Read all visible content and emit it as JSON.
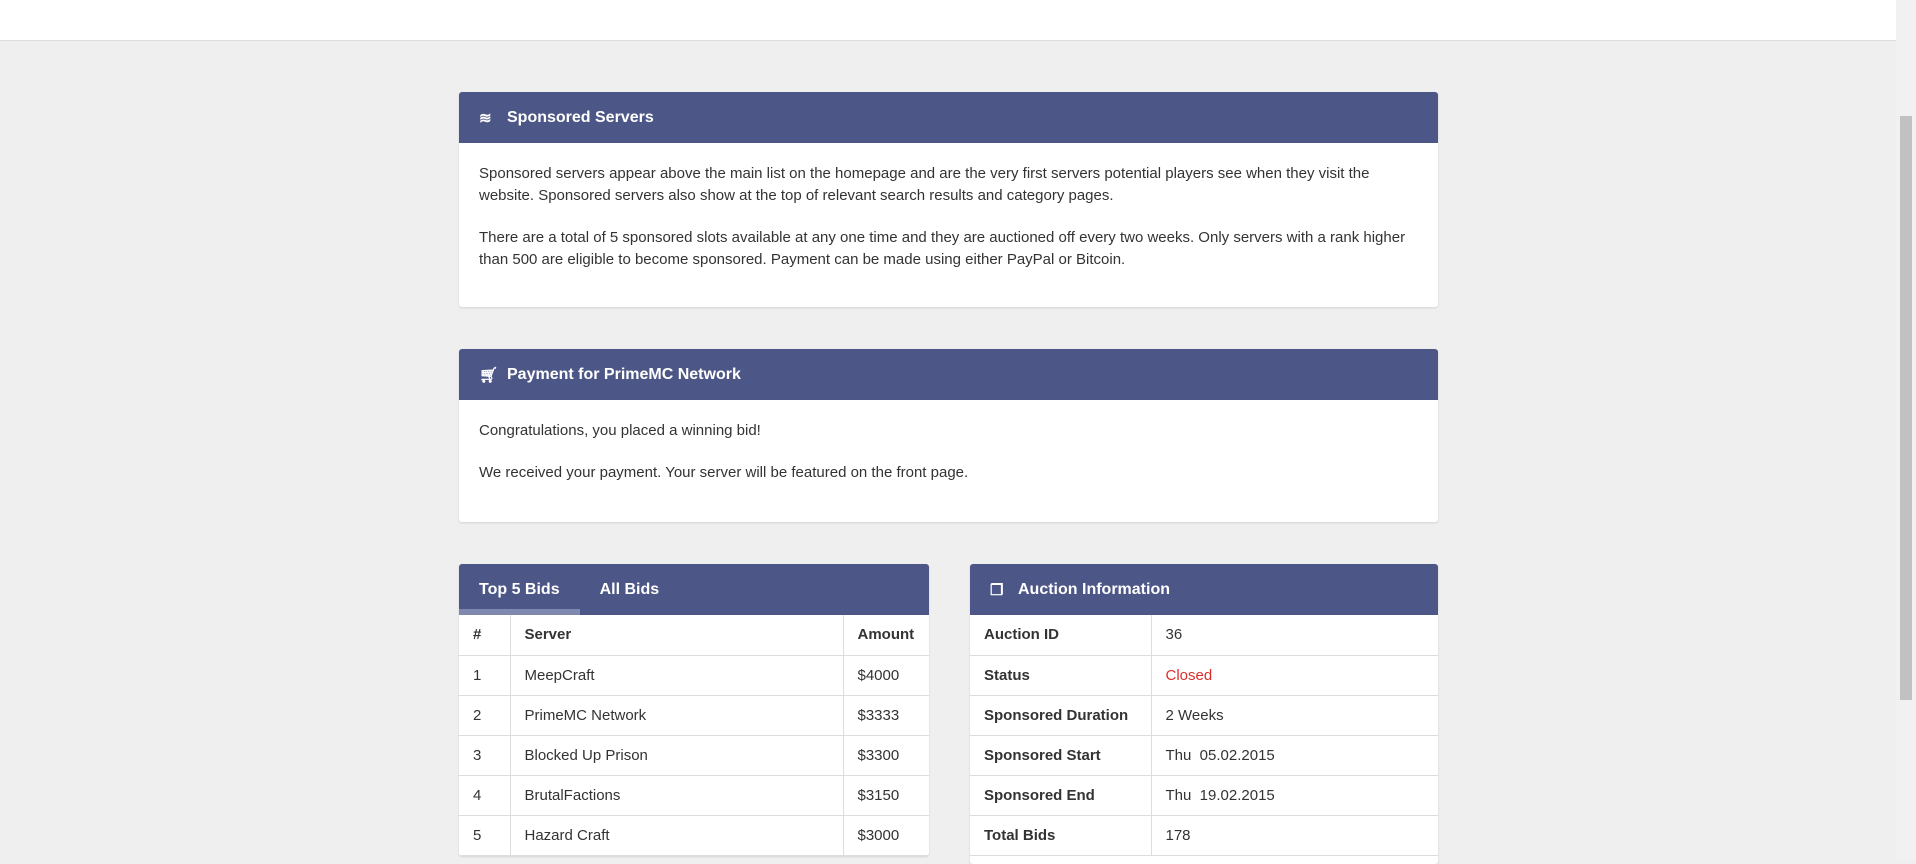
{
  "sponsored": {
    "title": "Sponsored Servers",
    "icon": "layers-icon",
    "paragraphs": [
      "Sponsored servers appear above the main list on the homepage and are the very first servers potential players see when they visit the website. Sponsored servers also show at the top of relevant search results and category pages.",
      "There are a total of 5 sponsored slots available at any one time and they are auctioned off every two weeks. Only servers with a rank higher than 500 are eligible to become sponsored. Payment can be made using either PayPal or Bitcoin."
    ]
  },
  "payment": {
    "title": "Payment for PrimeMC Network",
    "icon": "cart-add-icon",
    "paragraphs": [
      "Congratulations, you placed a winning bid!",
      "We received your payment. Your server will be featured on the front page."
    ]
  },
  "bids": {
    "tabs": [
      "Top 5 Bids",
      "All Bids"
    ],
    "active_tab": 0,
    "headers": [
      "#",
      "Server",
      "Amount"
    ],
    "rows": [
      [
        "1",
        "MeepCraft",
        "$4000"
      ],
      [
        "2",
        "PrimeMC Network",
        "$3333"
      ],
      [
        "3",
        "Blocked Up Prison",
        "$3300"
      ],
      [
        "4",
        "BrutalFactions",
        "$3150"
      ],
      [
        "5",
        "Hazard Craft",
        "$3000"
      ]
    ]
  },
  "auction": {
    "title": "Auction Information",
    "icon": "copy-icon",
    "rows": [
      [
        "Auction ID",
        "36"
      ],
      [
        "Status",
        "Closed"
      ],
      [
        "Sponsored Duration",
        "2 Weeks"
      ],
      [
        "Sponsored Start",
        "Thu  05.02.2015"
      ],
      [
        "Sponsored End",
        "Thu  19.02.2015"
      ],
      [
        "Total Bids",
        "178"
      ]
    ],
    "status_color": "#d9302c"
  },
  "colors": {
    "header": "#4d5787",
    "background": "#efefef"
  }
}
